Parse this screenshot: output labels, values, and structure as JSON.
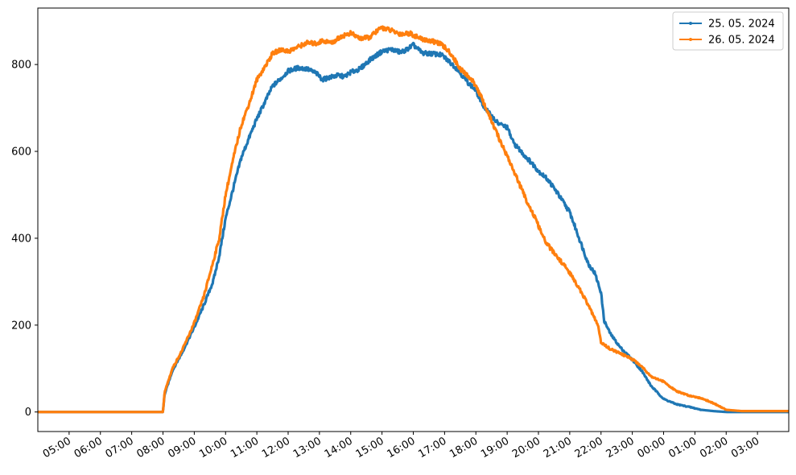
{
  "chart_data": {
    "type": "line",
    "title": "",
    "xlabel": "",
    "ylabel": "",
    "x_ticks": [
      "05:00",
      "06:00",
      "07:00",
      "08:00",
      "09:00",
      "10:00",
      "11:00",
      "12:00",
      "13:00",
      "14:00",
      "15:00",
      "16:00",
      "17:00",
      "18:00",
      "19:00",
      "20:00",
      "21:00",
      "22:00",
      "23:00",
      "00:00",
      "01:00",
      "02:00",
      "03:00"
    ],
    "x_range_hours": [
      4.0,
      28.0
    ],
    "ylim": [
      -45,
      930
    ],
    "y_ticks": [
      0,
      200,
      400,
      600,
      800
    ],
    "grid": false,
    "legend_position": "top-right",
    "series": [
      {
        "name": "25. 05. 2024",
        "color": "#1f77b4",
        "points": [
          [
            4.0,
            0
          ],
          [
            8.0,
            0
          ],
          [
            8.05,
            40
          ],
          [
            8.3,
            95
          ],
          [
            8.6,
            135
          ],
          [
            9.0,
            195
          ],
          [
            9.3,
            245
          ],
          [
            9.6,
            300
          ],
          [
            9.8,
            360
          ],
          [
            10.0,
            445
          ],
          [
            10.3,
            530
          ],
          [
            10.5,
            585
          ],
          [
            10.8,
            640
          ],
          [
            11.0,
            675
          ],
          [
            11.3,
            720
          ],
          [
            11.5,
            750
          ],
          [
            11.8,
            770
          ],
          [
            12.0,
            785
          ],
          [
            12.3,
            792
          ],
          [
            12.6,
            790
          ],
          [
            12.9,
            780
          ],
          [
            13.1,
            765
          ],
          [
            13.3,
            770
          ],
          [
            13.6,
            775
          ],
          [
            13.8,
            772
          ],
          [
            14.0,
            782
          ],
          [
            14.3,
            790
          ],
          [
            14.6,
            810
          ],
          [
            15.0,
            830
          ],
          [
            15.3,
            835
          ],
          [
            15.6,
            828
          ],
          [
            15.8,
            835
          ],
          [
            16.0,
            845
          ],
          [
            16.3,
            826
          ],
          [
            16.6,
            825
          ],
          [
            16.9,
            822
          ],
          [
            17.1,
            810
          ],
          [
            17.4,
            790
          ],
          [
            17.7,
            762
          ],
          [
            18.0,
            740
          ],
          [
            18.2,
            710
          ],
          [
            18.4,
            690
          ],
          [
            18.7,
            665
          ],
          [
            19.0,
            655
          ],
          [
            19.2,
            620
          ],
          [
            19.5,
            595
          ],
          [
            19.8,
            572
          ],
          [
            20.0,
            555
          ],
          [
            20.3,
            535
          ],
          [
            20.6,
            505
          ],
          [
            21.0,
            460
          ],
          [
            21.3,
            400
          ],
          [
            21.6,
            340
          ],
          [
            21.8,
            320
          ],
          [
            22.0,
            275
          ],
          [
            22.1,
            210
          ],
          [
            22.3,
            180
          ],
          [
            22.6,
            150
          ],
          [
            23.0,
            120
          ],
          [
            23.3,
            95
          ],
          [
            23.6,
            60
          ],
          [
            24.0,
            30
          ],
          [
            24.4,
            18
          ],
          [
            24.8,
            12
          ],
          [
            25.2,
            5
          ],
          [
            25.6,
            2
          ],
          [
            26.0,
            0
          ],
          [
            28.0,
            0
          ]
        ]
      },
      {
        "name": "26. 05. 2024",
        "color": "#ff7f0e",
        "points": [
          [
            4.0,
            0
          ],
          [
            8.0,
            0
          ],
          [
            8.05,
            45
          ],
          [
            8.3,
            100
          ],
          [
            8.6,
            140
          ],
          [
            9.0,
            205
          ],
          [
            9.3,
            265
          ],
          [
            9.6,
            345
          ],
          [
            9.8,
            400
          ],
          [
            10.0,
            500
          ],
          [
            10.3,
            600
          ],
          [
            10.5,
            660
          ],
          [
            10.8,
            720
          ],
          [
            11.0,
            765
          ],
          [
            11.3,
            800
          ],
          [
            11.5,
            825
          ],
          [
            11.8,
            835
          ],
          [
            12.0,
            830
          ],
          [
            12.3,
            840
          ],
          [
            12.6,
            850
          ],
          [
            12.9,
            848
          ],
          [
            13.1,
            855
          ],
          [
            13.4,
            850
          ],
          [
            13.7,
            865
          ],
          [
            14.0,
            872
          ],
          [
            14.3,
            860
          ],
          [
            14.6,
            862
          ],
          [
            14.8,
            875
          ],
          [
            15.0,
            885
          ],
          [
            15.3,
            878
          ],
          [
            15.6,
            870
          ],
          [
            15.9,
            872
          ],
          [
            16.2,
            860
          ],
          [
            16.5,
            855
          ],
          [
            16.8,
            850
          ],
          [
            17.0,
            840
          ],
          [
            17.2,
            825
          ],
          [
            17.5,
            790
          ],
          [
            17.8,
            770
          ],
          [
            18.0,
            752
          ],
          [
            18.2,
            720
          ],
          [
            18.5,
            670
          ],
          [
            18.8,
            620
          ],
          [
            19.0,
            590
          ],
          [
            19.3,
            540
          ],
          [
            19.6,
            490
          ],
          [
            19.9,
            445
          ],
          [
            20.2,
            395
          ],
          [
            20.5,
            365
          ],
          [
            20.8,
            340
          ],
          [
            21.0,
            320
          ],
          [
            21.3,
            285
          ],
          [
            21.6,
            245
          ],
          [
            21.9,
            200
          ],
          [
            22.0,
            160
          ],
          [
            22.3,
            145
          ],
          [
            22.6,
            135
          ],
          [
            23.0,
            122
          ],
          [
            23.3,
            105
          ],
          [
            23.6,
            82
          ],
          [
            24.0,
            70
          ],
          [
            24.4,
            48
          ],
          [
            24.8,
            38
          ],
          [
            25.2,
            32
          ],
          [
            25.6,
            20
          ],
          [
            26.0,
            5
          ],
          [
            26.5,
            2
          ],
          [
            28.0,
            2
          ]
        ]
      }
    ]
  }
}
